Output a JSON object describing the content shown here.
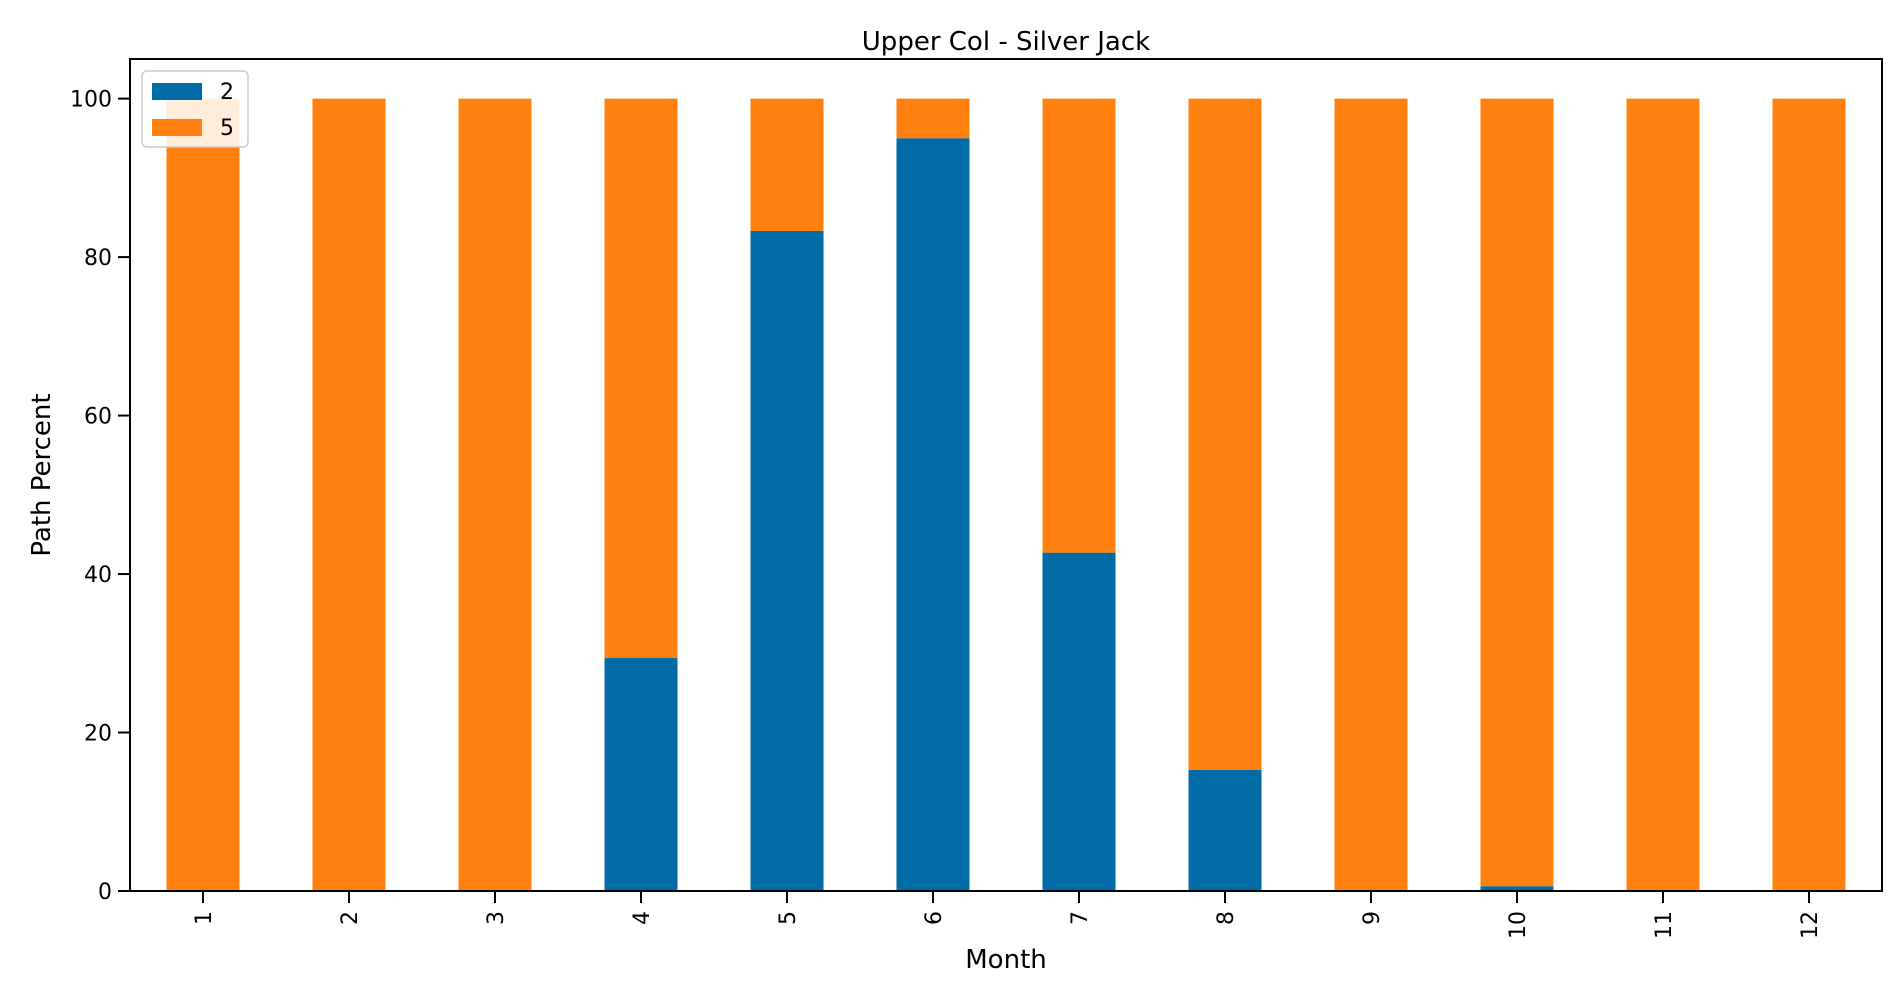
{
  "chart_data": {
    "type": "bar",
    "stacked": true,
    "title": "Upper Col - Silver Jack",
    "xlabel": "Month",
    "ylabel": "Path Percent",
    "categories": [
      "1",
      "2",
      "3",
      "4",
      "5",
      "6",
      "7",
      "8",
      "9",
      "10",
      "11",
      "12"
    ],
    "ylim": [
      0,
      105
    ],
    "yticks": [
      0,
      20,
      40,
      60,
      80,
      100
    ],
    "grid": false,
    "legend_position": "top-left",
    "series": [
      {
        "name": "2",
        "color": "#006BA4",
        "values": [
          0,
          0,
          0,
          29.4,
          83.3,
          95,
          42.7,
          15.3,
          0,
          0.6,
          0,
          0
        ]
      },
      {
        "name": "5",
        "color": "#FF800E",
        "values": [
          100,
          100,
          100,
          70.6,
          16.7,
          5,
          57.3,
          84.7,
          100,
          99.4,
          100,
          100
        ]
      }
    ]
  }
}
